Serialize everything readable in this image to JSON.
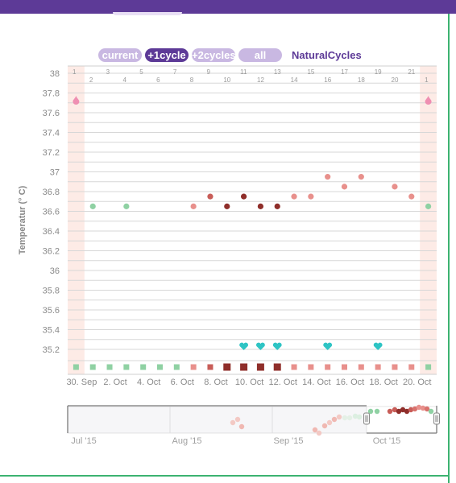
{
  "toolbar": {
    "current_label": "current",
    "plus1_label": "+1cycle",
    "plus2_label": "+2cycles",
    "all_label": "all",
    "brand": "NaturalCycles"
  },
  "colors": {
    "purple": "#5d3a97",
    "light_purple": "#c9b8e2",
    "green": "#8fd1a3",
    "pink": "#e8908c",
    "red": "#c85d58",
    "dark_red": "#8f2e2a",
    "teal": "#2ec4c4",
    "period_band": "#fdebe6"
  },
  "chart_data": {
    "type": "scatter",
    "ylabel": "Temperatur (° C)",
    "ylim": [
      35.0,
      38.0
    ],
    "yticks": [
      "35.2",
      "35.4",
      "35.6",
      "35.8",
      "36",
      "36.2",
      "36.4",
      "36.6",
      "36.8",
      "37",
      "37.2",
      "37.4",
      "37.6",
      "37.8",
      "38"
    ],
    "xlabels": [
      "30. Sep",
      "2. Oct",
      "4. Oct",
      "6. Oct",
      "8. Oct",
      "10. Oct",
      "12. Oct",
      "14. Oct",
      "16. Oct",
      "18. Oct",
      "20. Oct"
    ],
    "cycle_days": [
      "1",
      "2",
      "3",
      "4",
      "5",
      "6",
      "7",
      "8",
      "9",
      "10",
      "11",
      "12",
      "13",
      "14",
      "15",
      "16",
      "17",
      "18",
      "19",
      "20",
      "21",
      "1"
    ],
    "points": [
      {
        "day": 2,
        "temp": 36.65,
        "color": "green"
      },
      {
        "day": 4,
        "temp": 36.65,
        "color": "green"
      },
      {
        "day": 8,
        "temp": 36.65,
        "color": "pink"
      },
      {
        "day": 9,
        "temp": 36.75,
        "color": "red"
      },
      {
        "day": 10,
        "temp": 36.65,
        "color": "dark_red"
      },
      {
        "day": 11,
        "temp": 36.75,
        "color": "dark_red"
      },
      {
        "day": 12,
        "temp": 36.65,
        "color": "dark_red"
      },
      {
        "day": 13,
        "temp": 36.65,
        "color": "dark_red"
      },
      {
        "day": 14,
        "temp": 36.75,
        "color": "pink"
      },
      {
        "day": 15,
        "temp": 36.75,
        "color": "pink"
      },
      {
        "day": 16,
        "temp": 36.95,
        "color": "pink"
      },
      {
        "day": 17,
        "temp": 36.85,
        "color": "pink"
      },
      {
        "day": 18,
        "temp": 36.95,
        "color": "pink"
      },
      {
        "day": 20,
        "temp": 36.85,
        "color": "pink"
      },
      {
        "day": 21,
        "temp": 36.75,
        "color": "pink"
      },
      {
        "day": 22,
        "temp": 36.65,
        "color": "green"
      }
    ],
    "hearts": [
      11,
      12,
      13,
      16,
      19
    ],
    "period_days": [
      1,
      22
    ],
    "day_colors": [
      "green",
      "green",
      "green",
      "green",
      "green",
      "green",
      "green",
      "pink",
      "red",
      "dark_red",
      "dark_red",
      "dark_red",
      "dark_red",
      "pink",
      "pink",
      "pink",
      "pink",
      "pink",
      "pink",
      "pink",
      "pink",
      "green"
    ],
    "navigator_labels": [
      "Jul '15",
      "Aug '15",
      "Sep '15",
      "Oct '15"
    ]
  }
}
